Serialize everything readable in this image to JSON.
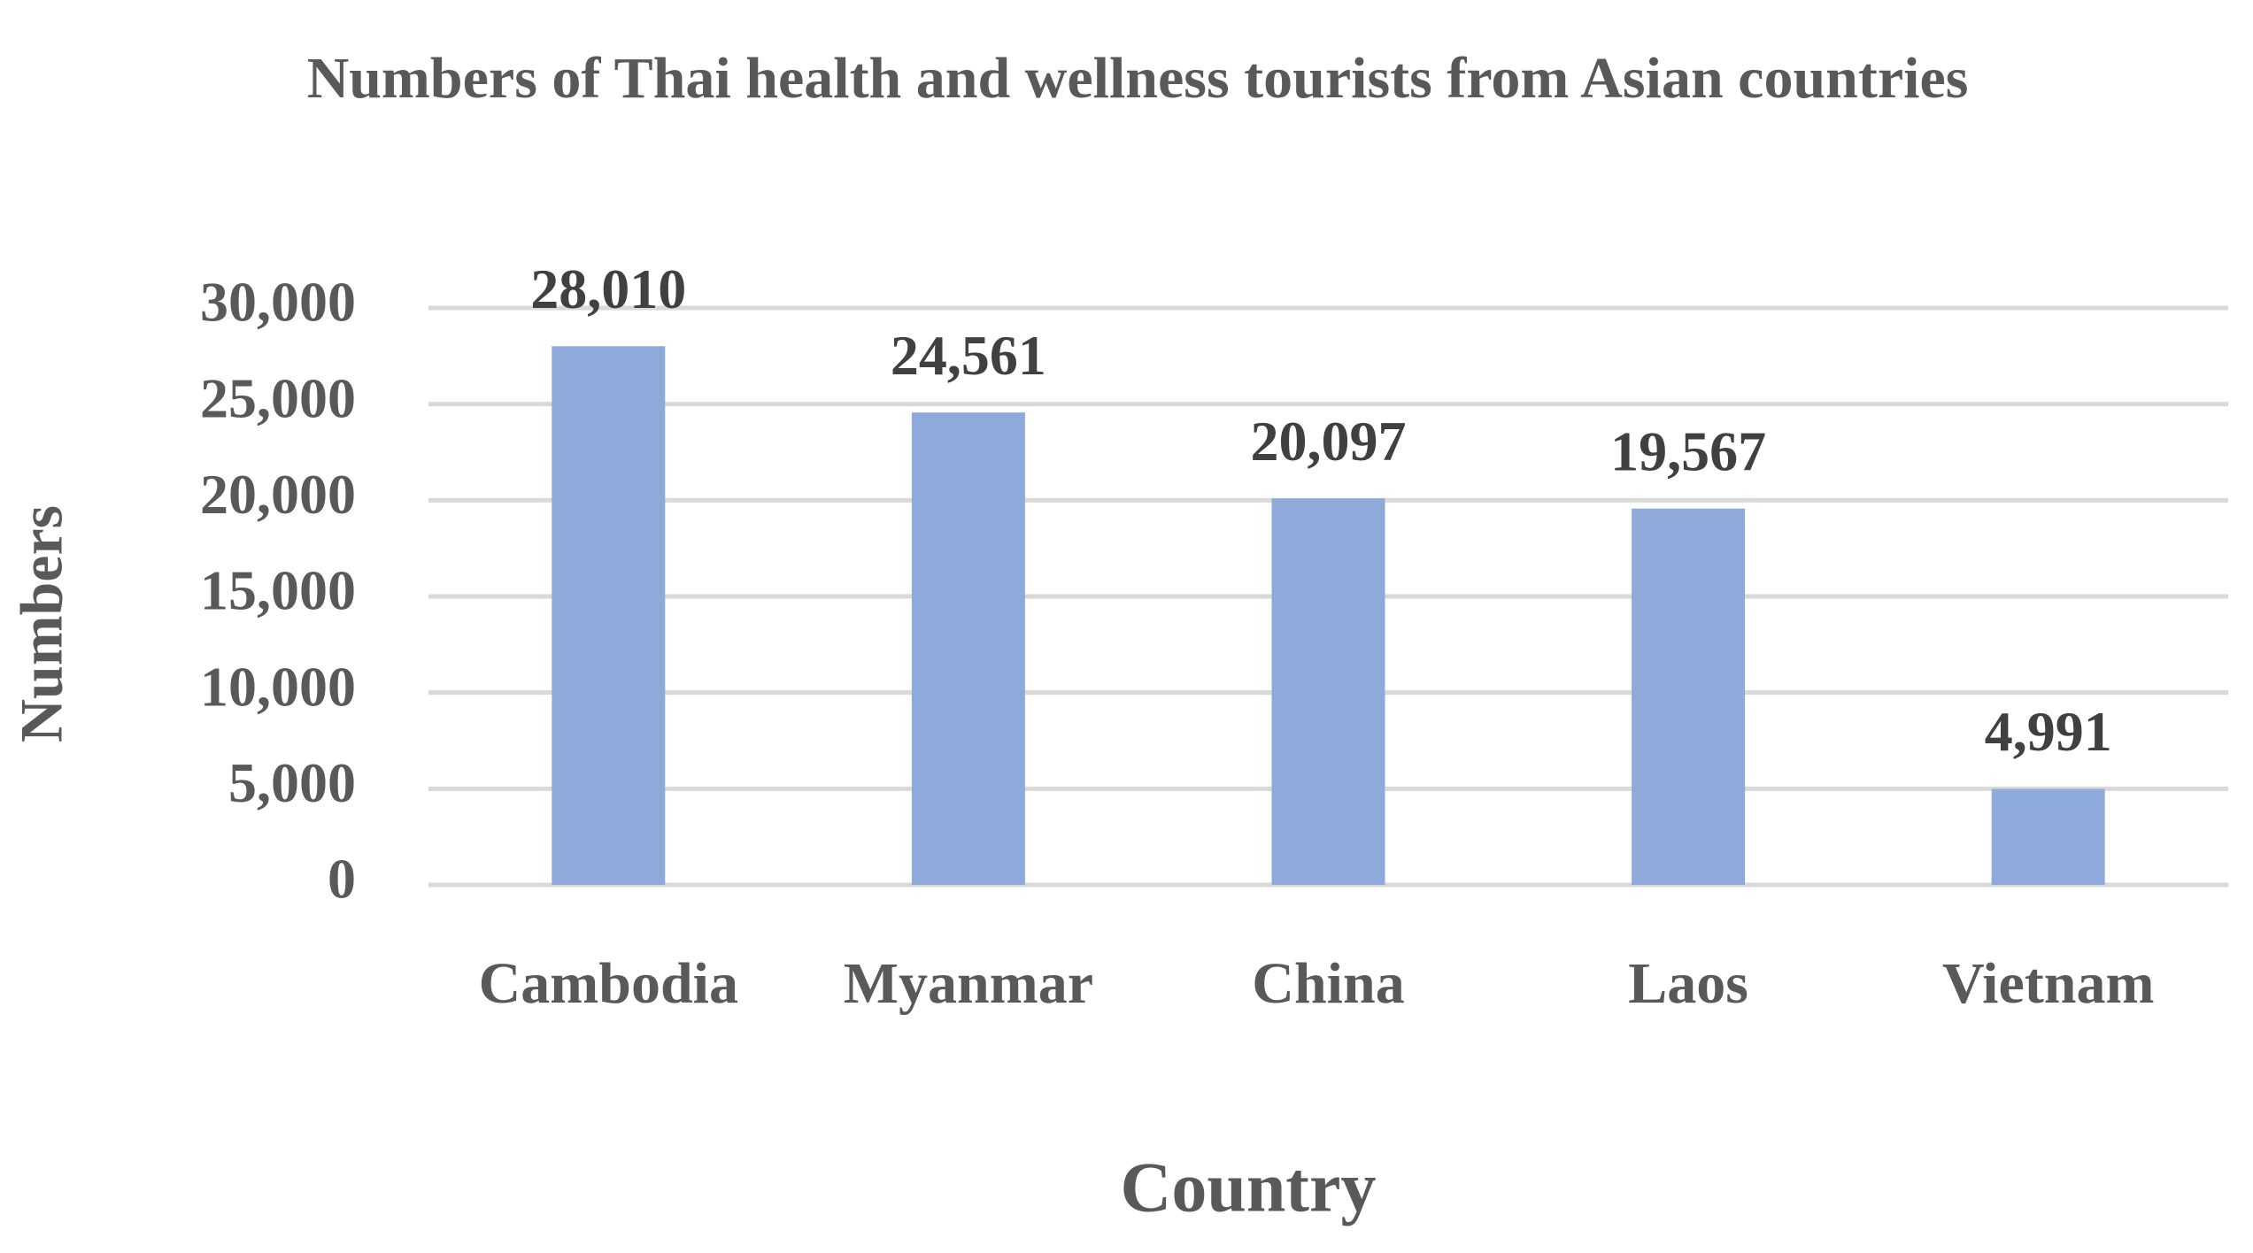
{
  "chart_data": {
    "type": "bar",
    "title": "Numbers of Thai health and wellness tourists from Asian countries",
    "x_label": "Country",
    "y_label": "Numbers",
    "categories": [
      "Cambodia",
      "Myanmar",
      "China",
      "Laos",
      "Vietnam"
    ],
    "values": [
      28010,
      24561,
      20097,
      19567,
      4991
    ],
    "value_labels": [
      "28,010",
      "24,561",
      "20,097",
      "19,567",
      "4,991"
    ],
    "color": "#8eaadb",
    "ylim": [
      0,
      30000
    ],
    "yticks": [
      0,
      {
        "value": 5000,
        "label": "5,000"
      },
      {
        "value": 10000,
        "label": "10,000"
      },
      {
        "value": 15000,
        "label": "15,000"
      },
      {
        "value": 20000,
        "label": "20,000"
      },
      {
        "value": 25000,
        "label": "25,000"
      },
      {
        "value": 30000,
        "label": "30,000"
      }
    ],
    "grid": true
  }
}
